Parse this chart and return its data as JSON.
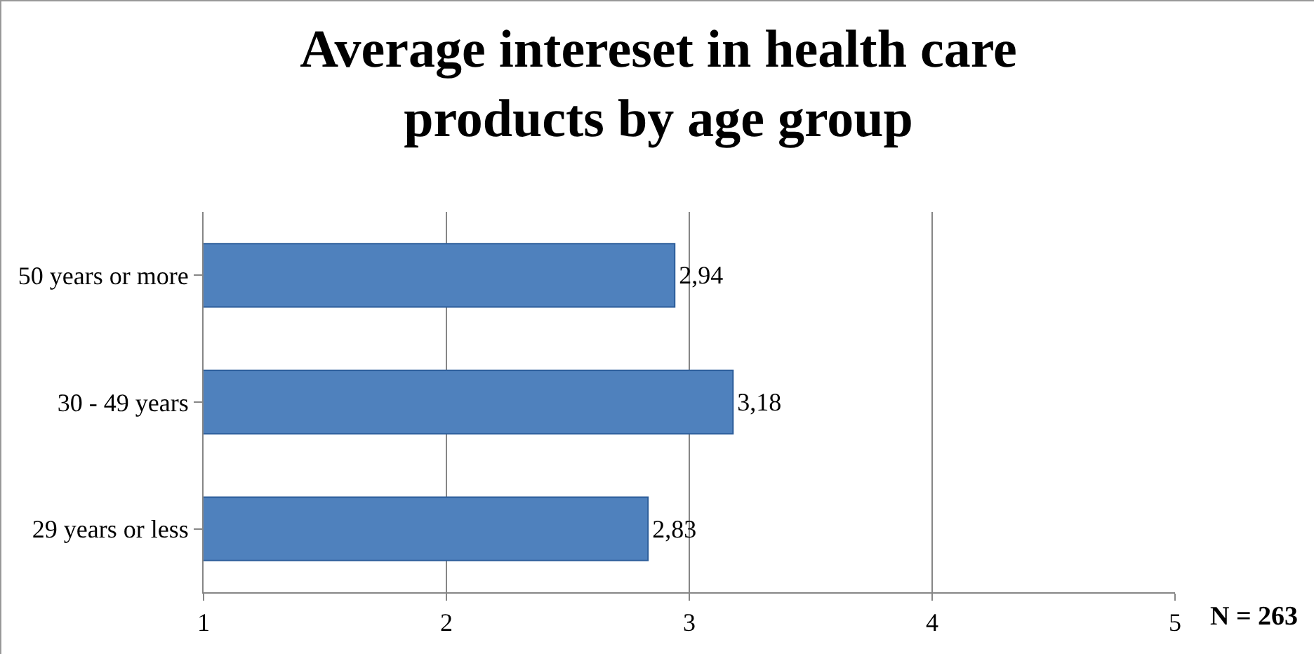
{
  "chart_data": {
    "type": "bar",
    "orientation": "horizontal",
    "title": "Average intereset in health care products by age group",
    "categories": [
      "50 years or more",
      "30 - 49 years",
      "29 years or less"
    ],
    "values": [
      2.94,
      3.18,
      2.83
    ],
    "value_labels": [
      "2,94",
      "3,18",
      "2,83"
    ],
    "color": "#4f81bd",
    "xlim": [
      1,
      5
    ],
    "xticks": [
      1,
      2,
      3,
      4,
      5
    ],
    "grid": "x",
    "annotations": [
      "N = 263"
    ]
  }
}
